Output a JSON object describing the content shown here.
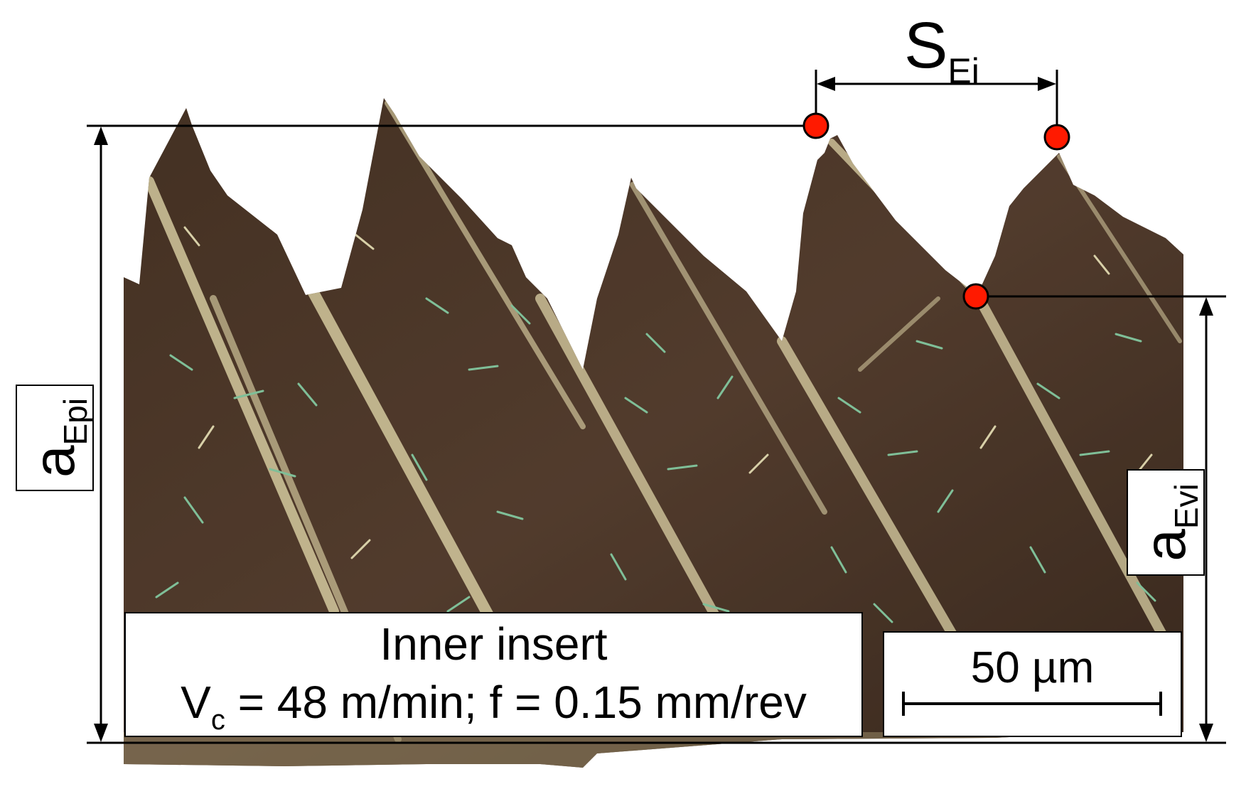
{
  "labels": {
    "caption_line1": "Inner insert",
    "caption_v": "V",
    "caption_v_sub": "c",
    "caption_rest": " = 48 m/min; f = 0.15 mm/rev",
    "scale_text": "50 µm",
    "aepi_main": "a",
    "aepi_sub": "Epi",
    "aevi_main": "a",
    "aevi_sub": "Evi",
    "sei_main": "S",
    "sei_sub": "Ei"
  },
  "colors": {
    "marker": "#ff1a00",
    "metal_dark": "#3a2a1e",
    "metal_mid": "#6b5040",
    "metal_light": "#c9b98a",
    "highlight": "#e8e0b0",
    "grain_green": "#6fae8a"
  }
}
